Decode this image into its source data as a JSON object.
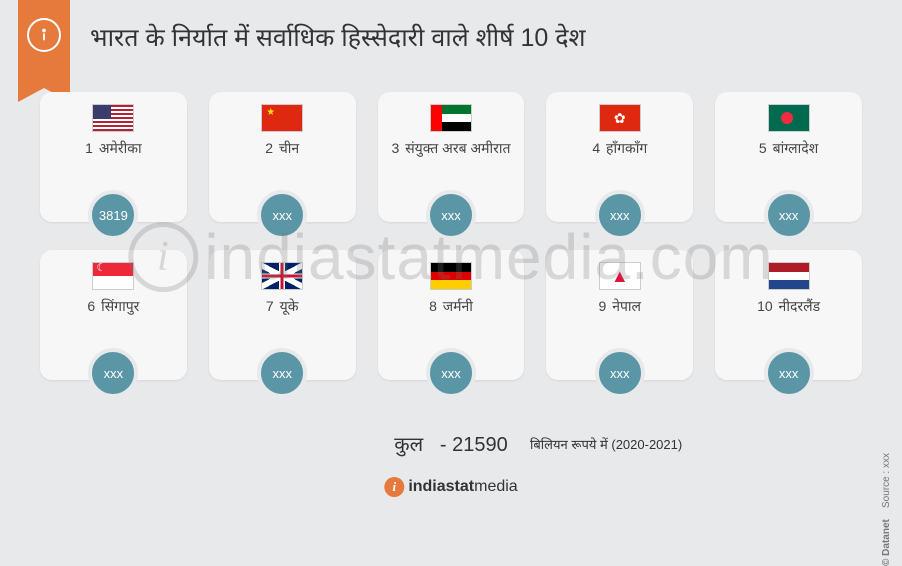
{
  "title": "भारत के निर्यात में सर्वाधिक हिस्सेदारी वाले शीर्ष 10 देश",
  "total_label": "कुल",
  "total_value": "- 21590",
  "note": "बिलियन रूपये में (2020-2021)",
  "brand": "indiastatmedia",
  "watermark": "indiastatmedia.com",
  "side_source": "Source : xxx",
  "side_copyright": "© Datanet",
  "countries": [
    {
      "rank": "1",
      "name": "अमेरीका",
      "value": "3819",
      "flag": "us"
    },
    {
      "rank": "2",
      "name": "चीन",
      "value": "xxx",
      "flag": "cn"
    },
    {
      "rank": "3",
      "name": "संयुक्त अरब अमीरात",
      "value": "xxx",
      "flag": "ae"
    },
    {
      "rank": "4",
      "name": "हॉंगकॉंग",
      "value": "xxx",
      "flag": "hk"
    },
    {
      "rank": "5",
      "name": "बांग्लादेश",
      "value": "xxx",
      "flag": "bd"
    },
    {
      "rank": "6",
      "name": "सिंगापुर",
      "value": "xxx",
      "flag": "sg"
    },
    {
      "rank": "7",
      "name": "यूके",
      "value": "xxx",
      "flag": "uk"
    },
    {
      "rank": "8",
      "name": "जर्मनी",
      "value": "xxx",
      "flag": "de"
    },
    {
      "rank": "9",
      "name": "नेपाल",
      "value": "xxx",
      "flag": "np"
    },
    {
      "rank": "10",
      "name": "नीदरलैंड",
      "value": "xxx",
      "flag": "nl"
    }
  ],
  "colors": {
    "accent": "#e67a3c",
    "badge": "#5a96a6",
    "card_bg": "#f7f7f7",
    "page_bg": "#e8e9eb",
    "text": "#333333"
  }
}
